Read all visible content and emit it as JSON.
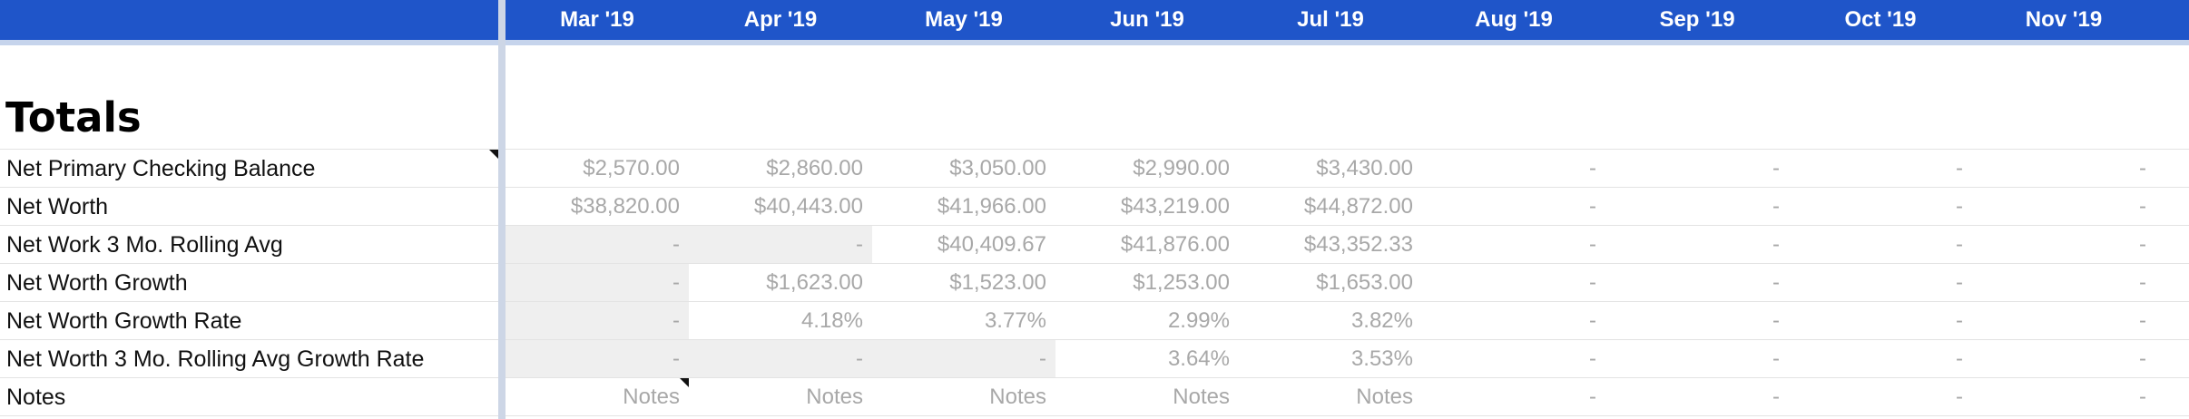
{
  "months": [
    "Mar '19",
    "Apr '19",
    "May '19",
    "Jun '19",
    "Jul '19",
    "Aug '19",
    "Sep '19",
    "Oct '19",
    "Nov '19"
  ],
  "section_title": "Totals",
  "rows": [
    {
      "label": "Net Primary Checking Balance",
      "cells": [
        "$2,570.00",
        "$2,860.00",
        "$3,050.00",
        "$2,990.00",
        "$3,430.00",
        "-",
        "-",
        "-",
        "-"
      ],
      "shaded": [
        false,
        false,
        false,
        false,
        false,
        false,
        false,
        false,
        false
      ]
    },
    {
      "label": "Net Worth",
      "cells": [
        "$38,820.00",
        "$40,443.00",
        "$41,966.00",
        "$43,219.00",
        "$44,872.00",
        "-",
        "-",
        "-",
        "-"
      ],
      "shaded": [
        false,
        false,
        false,
        false,
        false,
        false,
        false,
        false,
        false
      ]
    },
    {
      "label": "Net Work 3 Mo. Rolling Avg",
      "cells": [
        "-",
        "-",
        "$40,409.67",
        "$41,876.00",
        "$43,352.33",
        "-",
        "-",
        "-",
        "-"
      ],
      "shaded": [
        true,
        true,
        false,
        false,
        false,
        false,
        false,
        false,
        false
      ]
    },
    {
      "label": "Net Worth Growth",
      "cells": [
        "-",
        "$1,623.00",
        "$1,523.00",
        "$1,253.00",
        "$1,653.00",
        "-",
        "-",
        "-",
        "-"
      ],
      "shaded": [
        true,
        false,
        false,
        false,
        false,
        false,
        false,
        false,
        false
      ]
    },
    {
      "label": "Net Worth Growth Rate",
      "cells": [
        "-",
        "4.18%",
        "3.77%",
        "2.99%",
        "3.82%",
        "-",
        "-",
        "-",
        "-"
      ],
      "shaded": [
        true,
        false,
        false,
        false,
        false,
        false,
        false,
        false,
        false
      ]
    },
    {
      "label": "Net Worth 3 Mo. Rolling Avg Growth Rate",
      "cells": [
        "-",
        "-",
        "-",
        "3.64%",
        "3.53%",
        "-",
        "-",
        "-",
        "-"
      ],
      "shaded": [
        true,
        true,
        true,
        false,
        false,
        false,
        false,
        false,
        false
      ]
    },
    {
      "label": "Notes",
      "cells": [
        "Notes",
        "Notes",
        "Notes",
        "Notes",
        "Notes",
        "-",
        "-",
        "-",
        "-"
      ],
      "shaded": [
        false,
        false,
        false,
        false,
        false,
        false,
        false,
        false,
        false
      ]
    }
  ],
  "colors": {
    "header": "#1f55c9",
    "header_text": "#ffffff",
    "shade": "#efefef",
    "value_text": "#a8a8a8"
  }
}
